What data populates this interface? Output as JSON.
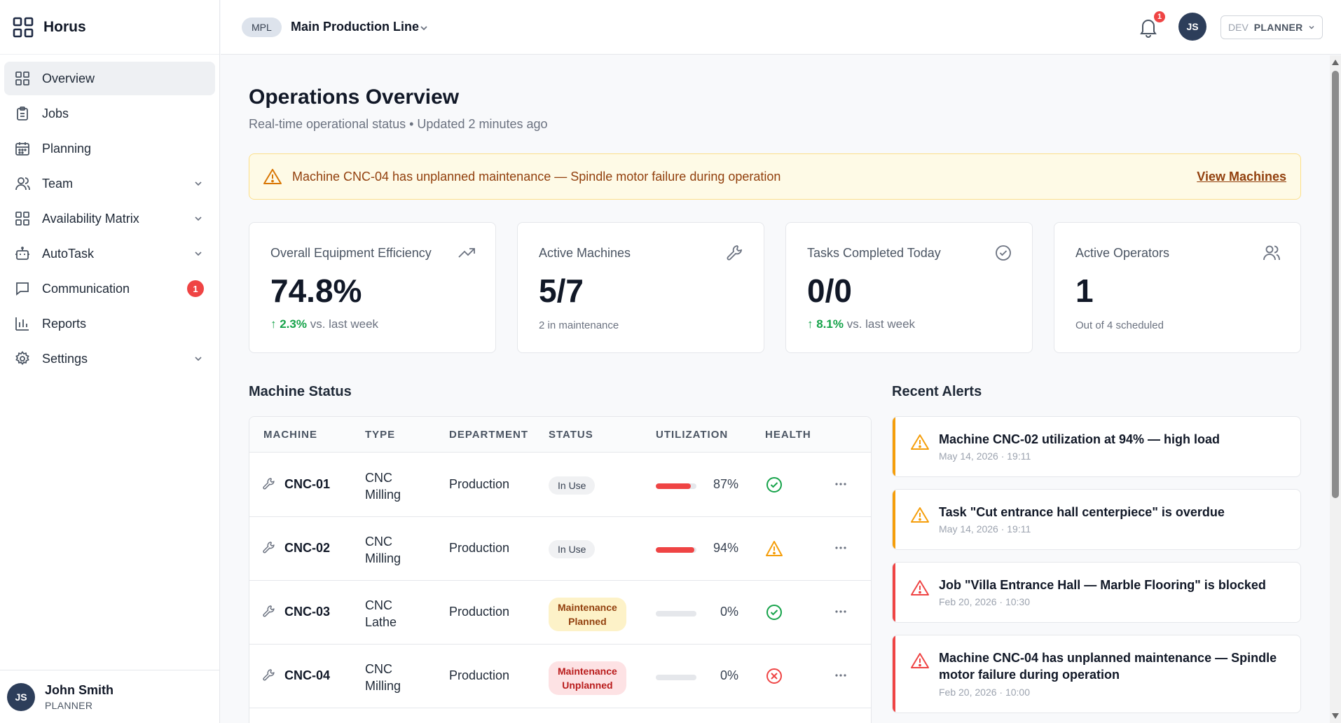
{
  "app": {
    "name": "Horus"
  },
  "sidebar": {
    "items": [
      {
        "label": "Overview",
        "icon": "grid-icon"
      },
      {
        "label": "Jobs",
        "icon": "clipboard-icon"
      },
      {
        "label": "Planning",
        "icon": "calendar-icon"
      },
      {
        "label": "Team",
        "icon": "users-icon"
      },
      {
        "label": "Availability Matrix",
        "icon": "grid-icon"
      },
      {
        "label": "AutoTask",
        "icon": "bot-icon"
      },
      {
        "label": "Communication",
        "icon": "message-icon",
        "badge": "1"
      },
      {
        "label": "Reports",
        "icon": "bar-chart-icon"
      },
      {
        "label": "Settings",
        "icon": "gear-icon"
      }
    ],
    "user": {
      "initials": "JS",
      "name": "John Smith",
      "role": "PLANNER"
    }
  },
  "topbar": {
    "line_code": "MPL",
    "line_name": "Main Production Line",
    "notification_count": "1",
    "avatar_initials": "JS",
    "env": "DEV",
    "role": "PLANNER"
  },
  "page": {
    "title": "Operations Overview",
    "subtitle": "Real-time operational status • Updated 2 minutes ago"
  },
  "banner": {
    "text": "Machine CNC-04 has unplanned maintenance — Spindle motor failure during operation",
    "link": "View Machines"
  },
  "cards": [
    {
      "label": "Overall Equipment Efficiency",
      "value": "74.8%",
      "trend": "↑ 2.3%",
      "foot": " vs. last week",
      "icon": "trending-up-icon"
    },
    {
      "label": "Active Machines",
      "value": "5/7",
      "foot": "2 in maintenance",
      "icon": "wrench-icon"
    },
    {
      "label": "Tasks Completed Today",
      "value": "0/0",
      "trend": "↑ 8.1%",
      "foot": " vs. last week",
      "icon": "check-circle-icon"
    },
    {
      "label": "Active Operators",
      "value": "1",
      "foot": "Out of 4 scheduled",
      "icon": "users-icon"
    }
  ],
  "machine_status": {
    "title": "Machine Status",
    "columns": [
      "MACHINE",
      "TYPE",
      "DEPARTMENT",
      "STATUS",
      "UTILIZATION",
      "HEALTH"
    ],
    "rows": [
      {
        "name": "CNC-01",
        "type1": "CNC",
        "type2": "Milling",
        "dept": "Production",
        "status": "In Use",
        "status_kind": "inuse",
        "util": 87,
        "util_label": "87%",
        "health": "ok"
      },
      {
        "name": "CNC-02",
        "type1": "CNC",
        "type2": "Milling",
        "dept": "Production",
        "status": "In Use",
        "status_kind": "inuse",
        "util": 94,
        "util_label": "94%",
        "health": "warn"
      },
      {
        "name": "CNC-03",
        "type1": "CNC",
        "type2": "Lathe",
        "dept": "Production",
        "status1": "Maintenance",
        "status2": "Planned",
        "status_kind": "planned",
        "util": 0,
        "util_label": "0%",
        "health": "ok"
      },
      {
        "name": "CNC-04",
        "type1": "CNC",
        "type2": "Milling",
        "dept": "Production",
        "status1": "Maintenance",
        "status2": "Unplanned",
        "status_kind": "unplanned",
        "util": 0,
        "util_label": "0%",
        "health": "error"
      }
    ]
  },
  "recent_alerts": {
    "title": "Recent Alerts",
    "items": [
      {
        "title": "Machine CNC-02 utilization at 94% — high load",
        "time": "May 14, 2026 · 19:11",
        "severity": "warning"
      },
      {
        "title": "Task \"Cut entrance hall centerpiece\" is overdue",
        "time": "May 14, 2026 · 19:11",
        "severity": "warning"
      },
      {
        "title": "Job \"Villa Entrance Hall — Marble Flooring\" is blocked",
        "time": "Feb 20, 2026 · 10:30",
        "severity": "critical"
      },
      {
        "title": "Machine CNC-04 has unplanned maintenance — Spindle motor failure during operation",
        "time": "Feb 20, 2026 · 10:00",
        "severity": "critical"
      }
    ]
  },
  "colors": {
    "accent": "#2d3e5a",
    "warning": "#f59e0b",
    "critical": "#ef4444",
    "success": "#16a34a"
  }
}
